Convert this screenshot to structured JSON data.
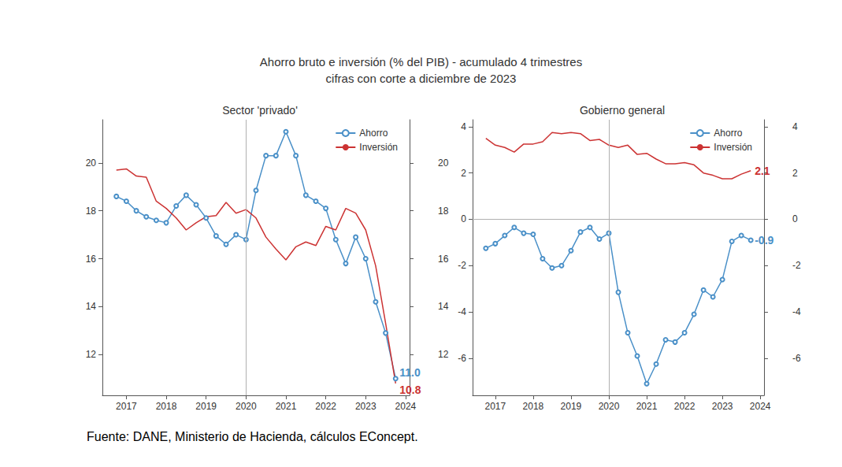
{
  "figure": {
    "title": "Ahorro bruto e inversión (% del PIB) - acumulado 4 trimestres",
    "subtitle": "cifras con corte a diciembre de 2023",
    "caption": "Fuente: DANE, Ministerio de Hacienda, cálculos EConcept."
  },
  "chart_data": [
    {
      "type": "line",
      "title": "Sector 'privado'",
      "x": [
        2016.75,
        2017.0,
        2017.25,
        2017.5,
        2017.75,
        2018.0,
        2018.25,
        2018.5,
        2018.75,
        2019.0,
        2019.25,
        2019.5,
        2019.75,
        2020.0,
        2020.25,
        2020.5,
        2020.75,
        2021.0,
        2021.25,
        2021.5,
        2021.75,
        2022.0,
        2022.25,
        2022.5,
        2022.75,
        2023.0,
        2023.25,
        2023.5,
        2023.75
      ],
      "series": [
        {
          "name": "Ahorro",
          "color": "#4a90c8",
          "marker": "circle",
          "end_label": "11.0",
          "values": [
            18.6,
            18.4,
            18.0,
            17.75,
            17.6,
            17.5,
            18.2,
            18.65,
            18.25,
            17.7,
            16.95,
            16.6,
            17.0,
            16.8,
            18.85,
            20.3,
            20.3,
            21.3,
            20.3,
            18.65,
            18.4,
            18.1,
            16.8,
            15.8,
            16.9,
            16.0,
            14.2,
            12.9,
            11.0
          ]
        },
        {
          "name": "Inversión",
          "color": "#cc3333",
          "marker": "none",
          "end_label": "10.8",
          "values": [
            19.7,
            19.75,
            19.45,
            19.4,
            18.4,
            18.1,
            17.7,
            17.2,
            17.5,
            17.75,
            17.8,
            18.35,
            17.9,
            18.05,
            17.7,
            16.9,
            16.4,
            15.95,
            16.5,
            16.7,
            16.55,
            17.35,
            17.2,
            18.1,
            17.9,
            17.2,
            15.7,
            13.3,
            10.8
          ]
        }
      ],
      "xlim": [
        2016.4,
        2024.1
      ],
      "xticks": [
        2017,
        2018,
        2019,
        2020,
        2021,
        2022,
        2023,
        2024
      ],
      "ylim": [
        10.3,
        21.8
      ],
      "yticks": [
        12,
        14,
        16,
        18,
        20
      ],
      "y2lim": [
        10.3,
        21.8
      ],
      "y2ticks": [
        12,
        14,
        16,
        18,
        20
      ],
      "vline": 2020,
      "grid": false,
      "legend": "upper right"
    },
    {
      "type": "line",
      "title": "Gobierno general",
      "x": [
        2016.75,
        2017.0,
        2017.25,
        2017.5,
        2017.75,
        2018.0,
        2018.25,
        2018.5,
        2018.75,
        2019.0,
        2019.25,
        2019.5,
        2019.75,
        2020.0,
        2020.25,
        2020.5,
        2020.75,
        2021.0,
        2021.25,
        2021.5,
        2021.75,
        2022.0,
        2022.25,
        2022.5,
        2022.75,
        2023.0,
        2023.25,
        2023.5,
        2023.75
      ],
      "series": [
        {
          "name": "Ahorro",
          "color": "#4a90c8",
          "marker": "circle",
          "end_label": "-0.9",
          "values": [
            -1.25,
            -1.05,
            -0.7,
            -0.35,
            -0.6,
            -0.65,
            -1.7,
            -2.1,
            -2.0,
            -1.35,
            -0.55,
            -0.35,
            -0.85,
            -0.6,
            -3.15,
            -4.9,
            -5.9,
            -7.1,
            -6.25,
            -5.2,
            -5.3,
            -4.9,
            -4.1,
            -3.05,
            -3.35,
            -2.6,
            -0.95,
            -0.7,
            -0.9
          ]
        },
        {
          "name": "Inversión",
          "color": "#cc3333",
          "marker": "none",
          "end_label": "2.1",
          "values": [
            3.5,
            3.2,
            3.1,
            2.9,
            3.25,
            3.25,
            3.35,
            3.75,
            3.7,
            3.75,
            3.7,
            3.4,
            3.45,
            3.2,
            3.1,
            3.2,
            2.8,
            2.85,
            2.6,
            2.4,
            2.4,
            2.45,
            2.35,
            2.0,
            1.9,
            1.75,
            1.75,
            1.95,
            2.1
          ]
        }
      ],
      "xlim": [
        2016.4,
        2024.1
      ],
      "xticks": [
        2017,
        2018,
        2019,
        2020,
        2021,
        2022,
        2023,
        2024
      ],
      "ylim": [
        -7.6,
        4.3
      ],
      "yticks": [
        -6,
        -4,
        -2,
        0,
        2,
        4
      ],
      "y2lim": [
        -7.6,
        4.3
      ],
      "y2ticks": [
        -6,
        -4,
        -2,
        0,
        2,
        4
      ],
      "vline": 2020,
      "hline": 0,
      "grid": false,
      "legend": "upper right"
    }
  ]
}
